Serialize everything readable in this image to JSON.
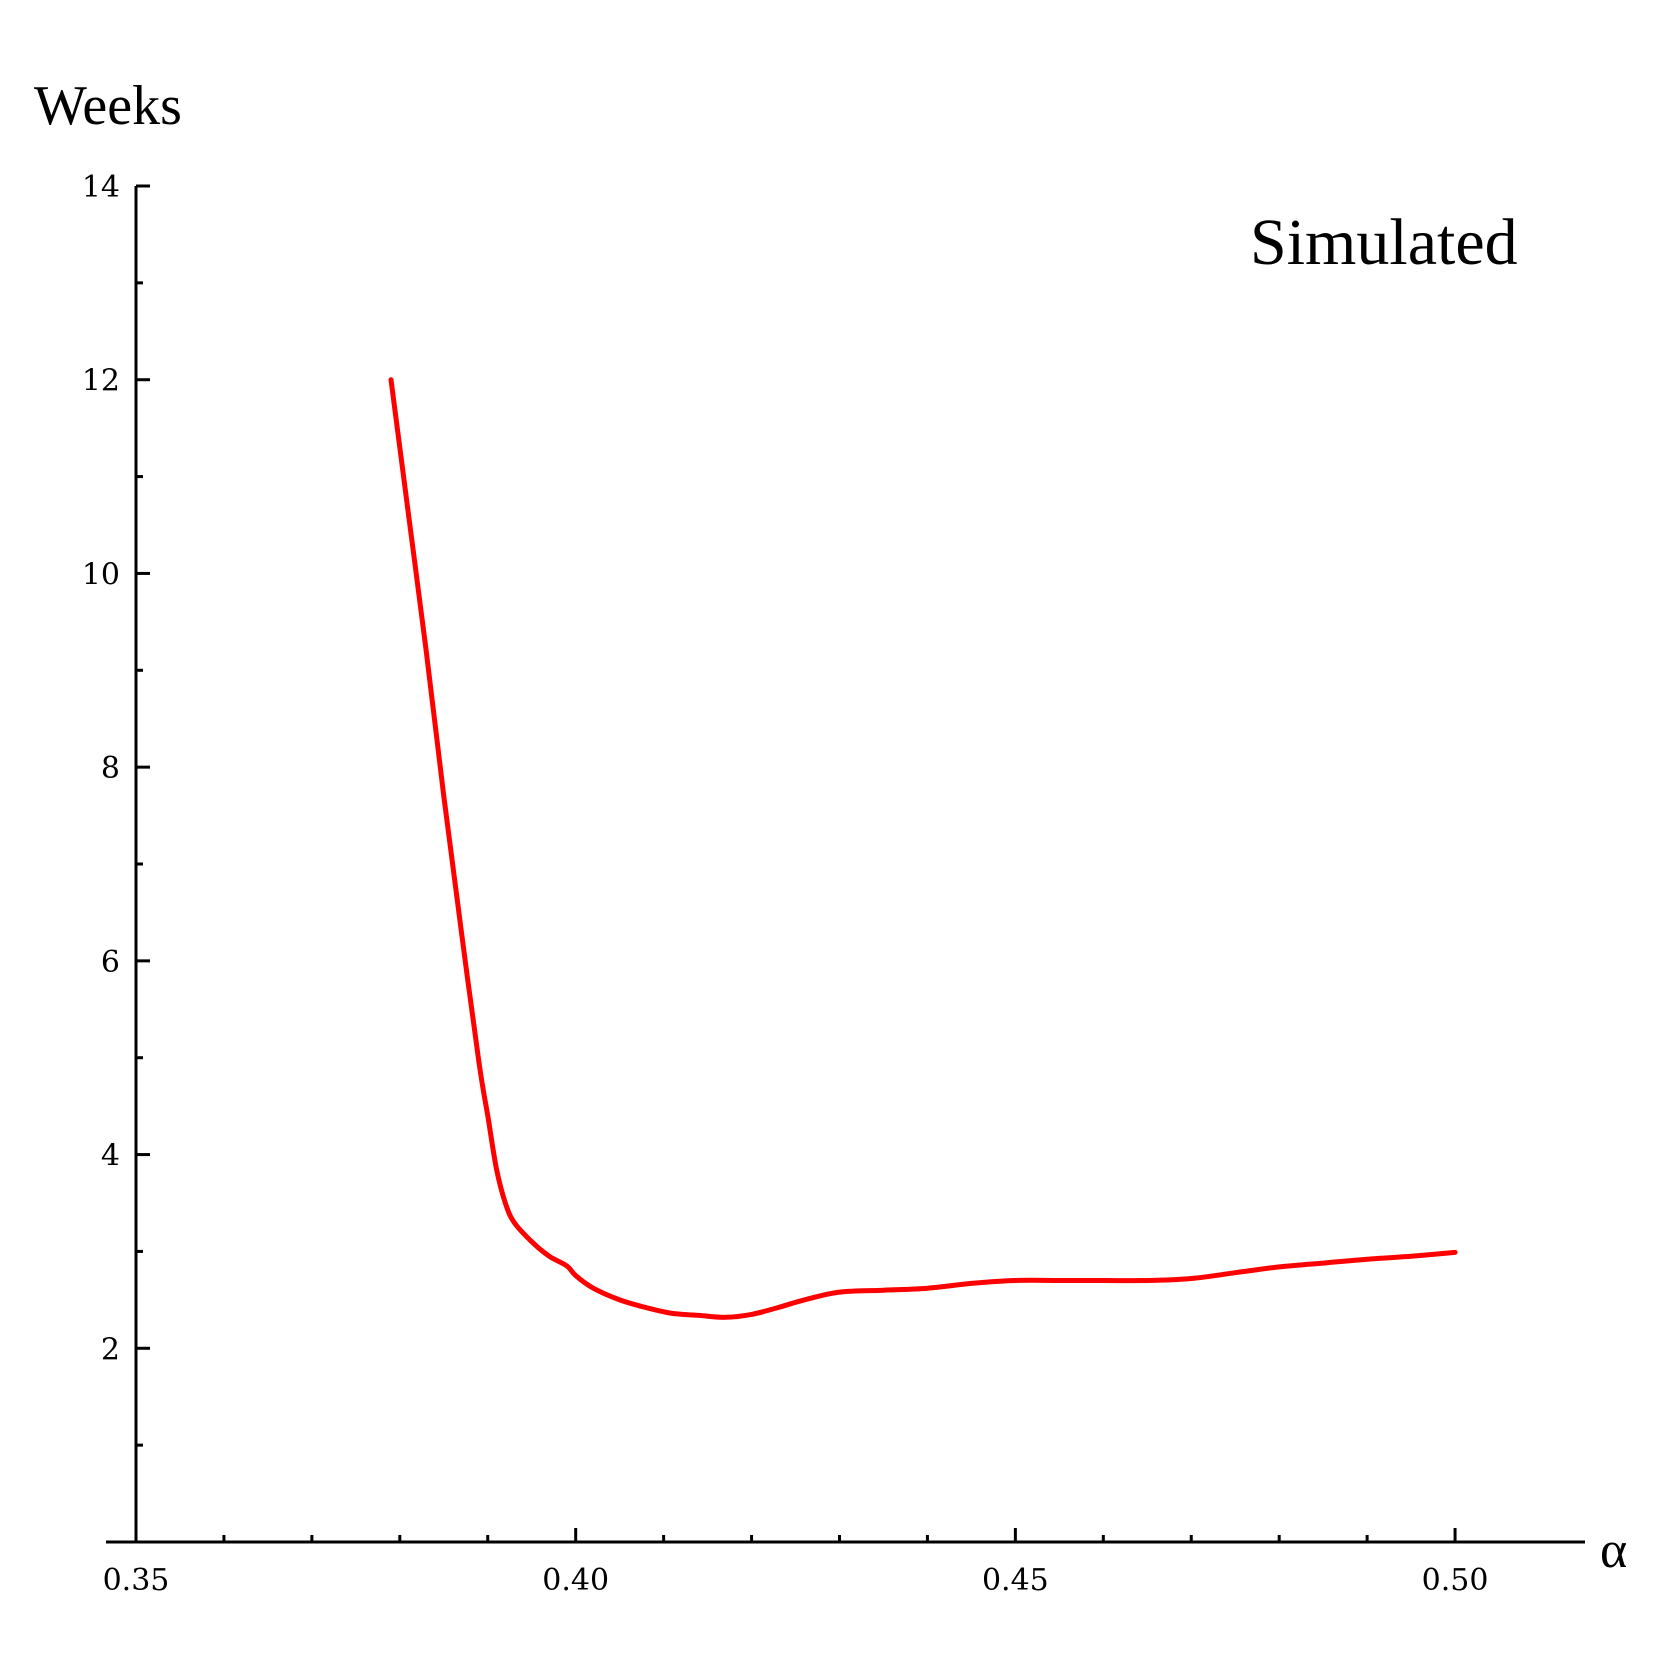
{
  "chart_data": {
    "type": "line",
    "title": "",
    "annotation": "Simulated",
    "xlabel": "α",
    "ylabel": "Weeks",
    "xlim": [
      0.35,
      0.51
    ],
    "ylim": [
      0,
      14
    ],
    "x_ticks": [
      0.35,
      0.4,
      0.45,
      0.5
    ],
    "x_tick_labels": [
      "0.35",
      "0.40",
      "0.45",
      "0.50"
    ],
    "x_minor_ticks": [
      0.36,
      0.37,
      0.38,
      0.39,
      0.41,
      0.42,
      0.43,
      0.44,
      0.46,
      0.47,
      0.48,
      0.49
    ],
    "y_ticks": [
      2,
      4,
      6,
      8,
      10,
      12,
      14
    ],
    "y_tick_labels": [
      "2",
      "4",
      "6",
      "8",
      "10",
      "12",
      "14"
    ],
    "y_minor_ticks": [
      1,
      3,
      5,
      7,
      9,
      11,
      13
    ],
    "grid": false,
    "legend": "none",
    "series": [
      {
        "color": "#ff0000",
        "x": [
          0.379,
          0.381,
          0.383,
          0.385,
          0.387,
          0.389,
          0.39,
          0.391,
          0.392,
          0.393,
          0.395,
          0.397,
          0.399,
          0.4,
          0.402,
          0.405,
          0.408,
          0.411,
          0.414,
          0.417,
          0.42,
          0.423,
          0.426,
          0.43,
          0.435,
          0.44,
          0.445,
          0.45,
          0.455,
          0.46,
          0.465,
          0.47,
          0.475,
          0.48,
          0.485,
          0.49,
          0.495,
          0.5
        ],
        "y": [
          12.0,
          10.6,
          9.2,
          7.7,
          6.3,
          4.95,
          4.4,
          3.85,
          3.5,
          3.3,
          3.1,
          2.95,
          2.85,
          2.75,
          2.62,
          2.5,
          2.42,
          2.36,
          2.34,
          2.32,
          2.35,
          2.42,
          2.5,
          2.58,
          2.6,
          2.62,
          2.67,
          2.7,
          2.7,
          2.7,
          2.7,
          2.72,
          2.78,
          2.84,
          2.88,
          2.92,
          2.95,
          2.99
        ]
      }
    ]
  }
}
